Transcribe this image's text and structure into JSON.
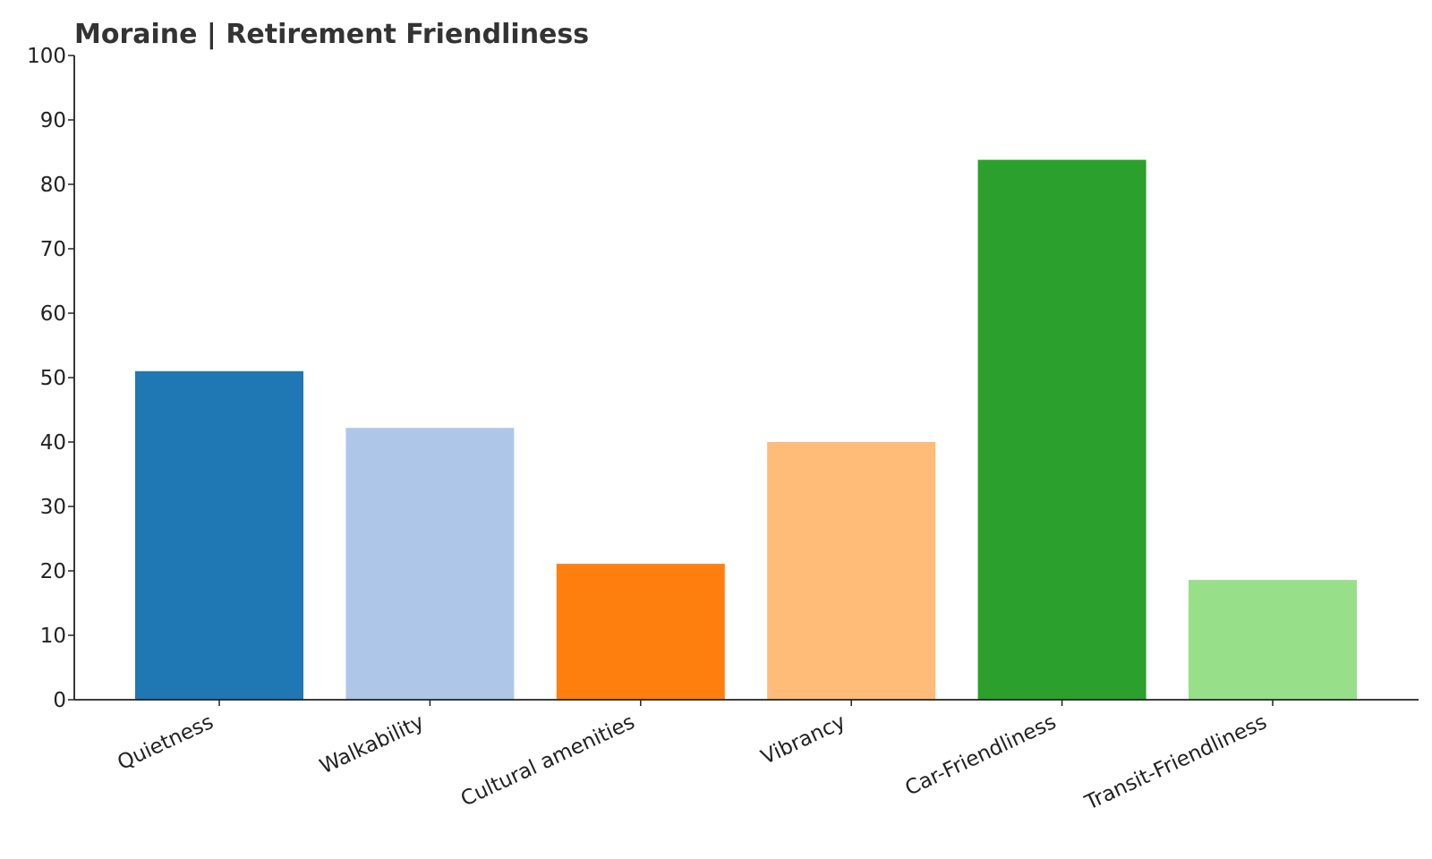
{
  "chart_data": {
    "type": "bar",
    "title": "Moraine | Retirement Friendliness",
    "xlabel": "",
    "ylabel": "",
    "categories": [
      "Quietness",
      "Walkability",
      "Cultural amenities",
      "Vibrancy",
      "Car-Friendliness",
      "Transit-Friendliness"
    ],
    "values": [
      51,
      42.2,
      21.1,
      40,
      83.8,
      18.6
    ],
    "colors": [
      "#1f77b4",
      "#aec7e8",
      "#ff7f0e",
      "#ffbb78",
      "#2ca02c",
      "#98df8a"
    ],
    "ylim": [
      0,
      100
    ],
    "yticks": [
      0,
      10,
      20,
      30,
      40,
      50,
      60,
      70,
      80,
      90,
      100
    ],
    "grid": false,
    "legend": "none"
  }
}
